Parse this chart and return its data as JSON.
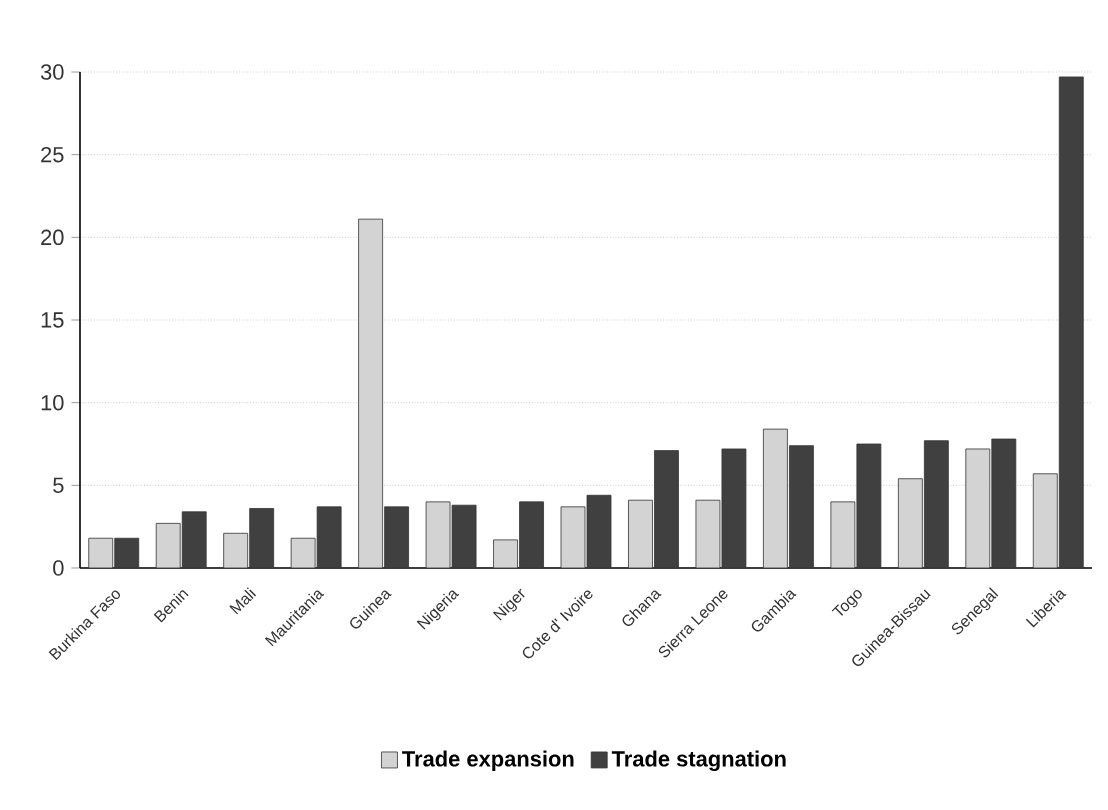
{
  "chart_data": {
    "type": "bar",
    "categories": [
      "Burkina Faso",
      "Benin",
      "Mali",
      "Mauritania",
      "Guinea",
      "Nigeria",
      "Niger",
      "Cote d' Ivoire",
      "Ghana",
      "Sierra Leone",
      "Gambia",
      "Togo",
      "Guinea-Bissau",
      "Senegal",
      "Liberia"
    ],
    "series": [
      {
        "name": "Trade expansion",
        "color": "#d3d3d3",
        "values": [
          1.8,
          2.7,
          2.1,
          1.8,
          21.1,
          4.0,
          1.7,
          3.7,
          4.1,
          4.1,
          8.4,
          4.0,
          5.4,
          7.2,
          5.7
        ]
      },
      {
        "name": "Trade stagnation",
        "color": "#404040",
        "values": [
          1.8,
          3.4,
          3.6,
          3.7,
          3.7,
          3.8,
          4.0,
          4.4,
          7.1,
          7.2,
          7.4,
          7.5,
          7.7,
          7.8,
          29.7
        ]
      }
    ],
    "ylim": [
      0,
      30
    ],
    "yticks": [
      0,
      5,
      10,
      15,
      20,
      25,
      30
    ],
    "grid": "y",
    "legend": "bottom"
  }
}
